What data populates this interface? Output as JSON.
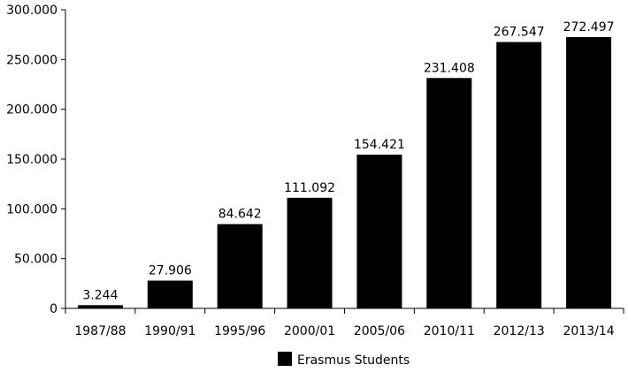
{
  "chart_data": {
    "type": "bar",
    "categories": [
      "1987/88",
      "1990/91",
      "1995/96",
      "2000/01",
      "2005/06",
      "2010/11",
      "2012/13",
      "2013/14"
    ],
    "series": [
      {
        "name": "Erasmus Students",
        "values": [
          3244,
          27906,
          84642,
          111092,
          154421,
          231408,
          267547,
          272497
        ],
        "value_labels": [
          "3.244",
          "27.906",
          "84.642",
          "111.092",
          "154.421",
          "231.408",
          "267.547",
          "272.497"
        ],
        "color": "#000000"
      }
    ],
    "ylim": [
      0,
      300000
    ],
    "yticks": [
      0,
      50000,
      100000,
      150000,
      200000,
      250000,
      300000
    ],
    "ytick_labels": [
      "0",
      "50.000",
      "100.000",
      "150.000",
      "200.000",
      "250.000",
      "300.000"
    ],
    "grid": false,
    "legend": {
      "position": "bottom-center",
      "entries": [
        "Erasmus Students"
      ]
    },
    "title": "",
    "xlabel": "",
    "ylabel": ""
  }
}
